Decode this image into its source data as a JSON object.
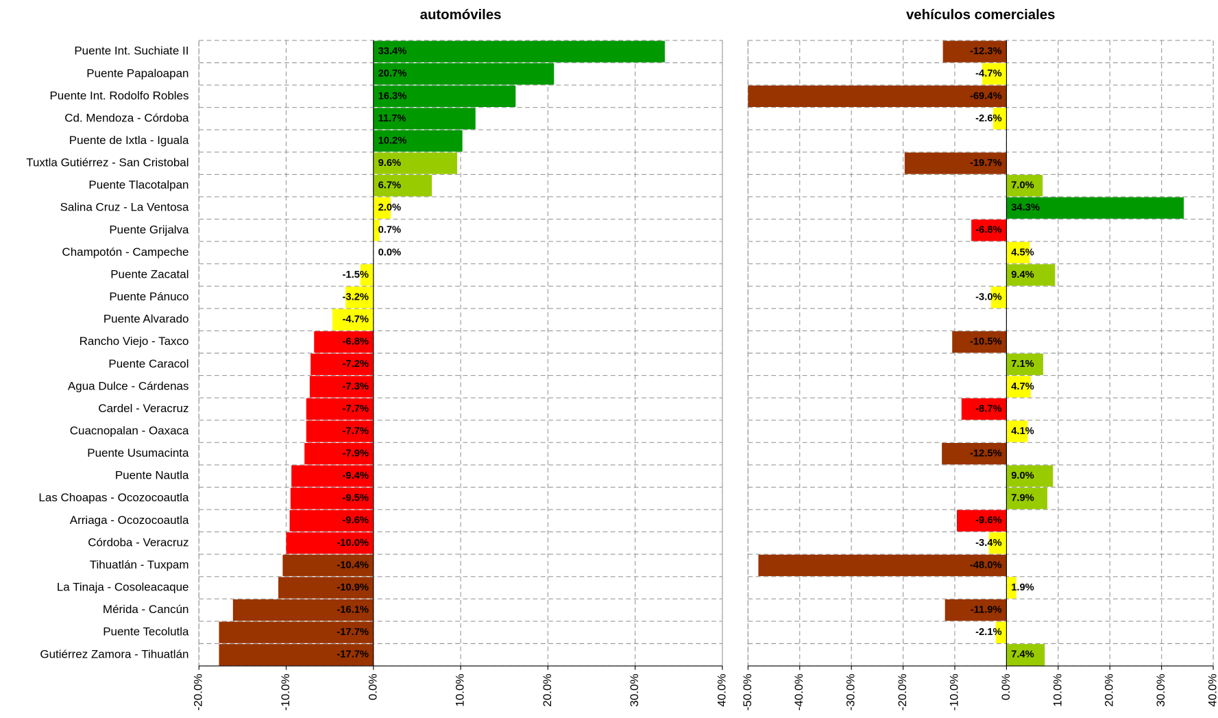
{
  "chart_data": [
    {
      "type": "barh",
      "title": "automóviles",
      "categories": [
        "Puente Int. Suchiate II",
        "Puente Papaloapan",
        "Puente Int. Rodolfo Robles",
        "Cd. Mendoza - Córdoba",
        "Puente de Ixtla - Iguala",
        "Tuxtla Gutiérrez - San Cristobal",
        "Puente Tlacotalpan",
        "Salina Cruz - La Ventosa",
        "Puente Grijalva",
        "Champotón - Campeche",
        "Puente Zacatal",
        "Puente Pánuco",
        "Puente Alvarado",
        "Rancho Viejo - Taxco",
        "Puente Caracol",
        "Agua Dulce - Cárdenas",
        "Cardel - Veracruz",
        "Cuacnopalan - Oaxaca",
        "Puente Usumacinta",
        "Puente Nautla",
        "Las Choapas - Ocozocoautla",
        "Arriaga - Ocozocoautla",
        "Córdoba - Veracruz",
        "Tihuatlán - Tuxpam",
        "La Tinaja - Cosoleacaque",
        "Mérida - Cancún",
        "Puente Tecolutla",
        "Gutiérrez Zamora - Tihuatlán"
      ],
      "values": [
        33.4,
        20.7,
        16.3,
        11.7,
        10.2,
        9.6,
        6.7,
        2.0,
        0.7,
        0.0,
        -1.5,
        -3.2,
        -4.7,
        -6.8,
        -7.2,
        -7.3,
        -7.7,
        -7.7,
        -7.9,
        -9.4,
        -9.5,
        -9.6,
        -10.0,
        -10.4,
        -10.9,
        -16.1,
        -17.7,
        -17.7
      ],
      "value_labels": [
        "33.4%",
        "20.7%",
        "16.3%",
        "11.7%",
        "10.2%",
        "9.6%",
        "6.7%",
        "2.0%",
        "0.7%",
        "0.0%",
        "-1.5%",
        "-3.2%",
        "-4.7%",
        "-6.8%",
        "-7.2%",
        "-7.3%",
        "-7.7%",
        "-7.7%",
        "-7.9%",
        "-9.4%",
        "-9.5%",
        "-9.6%",
        "-10.0%",
        "-10.4%",
        "-10.9%",
        "-16.1%",
        "-17.7%",
        "-17.7%"
      ],
      "colors": [
        "#009900",
        "#009900",
        "#009900",
        "#009900",
        "#009900",
        "#99cc00",
        "#99cc00",
        "#ffff00",
        "#ffff00",
        "#ffff00",
        "#ffff00",
        "#ffff00",
        "#ffff00",
        "#ff0000",
        "#ff0000",
        "#ff0000",
        "#ff0000",
        "#ff0000",
        "#ff0000",
        "#ff0000",
        "#ff0000",
        "#ff0000",
        "#ff0000",
        "#993300",
        "#993300",
        "#993300",
        "#993300",
        "#993300"
      ],
      "xlim": [
        -20,
        40
      ],
      "xticks": [
        {
          "value": -20,
          "label": "-20.0%"
        },
        {
          "value": -10,
          "label": "-10.0%"
        },
        {
          "value": 0,
          "label": "0.0%"
        },
        {
          "value": 10,
          "label": "10.0%"
        },
        {
          "value": 20,
          "label": "20.0%"
        },
        {
          "value": 30,
          "label": "30.0%"
        },
        {
          "value": 40,
          "label": "40.0%"
        }
      ],
      "grid": true
    },
    {
      "type": "barh",
      "title": "vehículos comerciales",
      "values": [
        -12.3,
        -4.7,
        -69.4,
        -2.6,
        null,
        -19.7,
        7.0,
        34.3,
        -6.8,
        4.5,
        9.4,
        -3.0,
        null,
        -10.5,
        7.1,
        4.7,
        -8.7,
        4.1,
        -12.5,
        9.0,
        7.9,
        -9.6,
        -3.4,
        -48.0,
        1.9,
        -11.9,
        -2.1,
        7.4
      ],
      "value_labels": [
        "-12.3%",
        "-4.7%",
        "-69.4%",
        "-2.6%",
        null,
        "-19.7%",
        "7.0%",
        "34.3%",
        "-6.8%",
        "4.5%",
        "9.4%",
        "-3.0%",
        null,
        "-10.5%",
        "7.1%",
        "4.7%",
        "-8.7%",
        "4.1%",
        "-12.5%",
        "9.0%",
        "7.9%",
        "-9.6%",
        "-3.4%",
        "-48.0%",
        "1.9%",
        "-11.9%",
        "-2.1%",
        "7.4%"
      ],
      "colors": [
        "#993300",
        "#ffff00",
        "#993300",
        "#ffff00",
        null,
        "#993300",
        "#99cc00",
        "#009900",
        "#ff0000",
        "#ffff00",
        "#99cc00",
        "#ffff00",
        null,
        "#993300",
        "#99cc00",
        "#ffff00",
        "#ff0000",
        "#ffff00",
        "#993300",
        "#99cc00",
        "#99cc00",
        "#ff0000",
        "#ffff00",
        "#993300",
        "#ffff00",
        "#993300",
        "#ffff00",
        "#99cc00"
      ],
      "xlim": [
        -50,
        40
      ],
      "xticks": [
        {
          "value": -50,
          "label": "-50.0%"
        },
        {
          "value": -40,
          "label": "-40.0%"
        },
        {
          "value": -30,
          "label": "-30.0%"
        },
        {
          "value": -20,
          "label": "-20.0%"
        },
        {
          "value": -10,
          "label": "-10.0%"
        },
        {
          "value": 0,
          "label": "0.0%"
        },
        {
          "value": 10,
          "label": "10.0%"
        },
        {
          "value": 20,
          "label": "20.0%"
        },
        {
          "value": 30,
          "label": "30.0%"
        },
        {
          "value": 40,
          "label": "40.0%"
        }
      ],
      "grid": true
    }
  ]
}
